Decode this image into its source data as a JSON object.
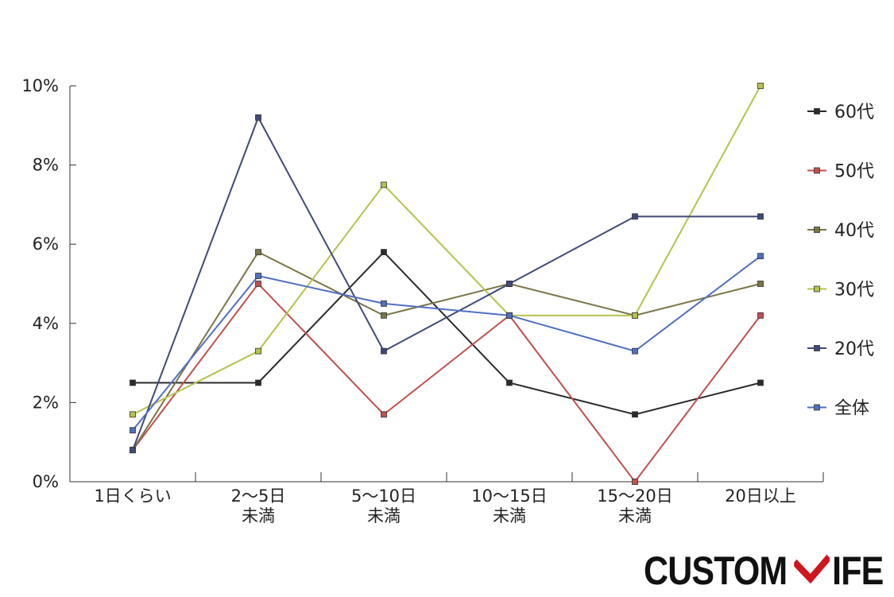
{
  "chart_data": {
    "type": "line",
    "categories": [
      [
        "1日くらい"
      ],
      [
        "2〜5日",
        "未満"
      ],
      [
        "5〜10日",
        "未満"
      ],
      [
        "10〜15日",
        "未満"
      ],
      [
        "15〜20日",
        "未満"
      ],
      [
        "20日以上"
      ]
    ],
    "ylim": [
      0,
      10
    ],
    "yticks": [
      "0%",
      "2%",
      "4%",
      "6%",
      "8%",
      "10%"
    ],
    "legend_position": "right",
    "series": [
      {
        "name": "60代",
        "color": "#2b2b2b",
        "values": [
          2.5,
          2.5,
          5.8,
          2.5,
          1.7,
          2.5
        ]
      },
      {
        "name": "50代",
        "color": "#c0504d",
        "values": [
          0.8,
          5.0,
          1.7,
          4.2,
          0.0,
          4.2
        ]
      },
      {
        "name": "40代",
        "color": "#7a7448",
        "values": [
          0.8,
          5.8,
          4.2,
          5.0,
          4.2,
          5.0
        ]
      },
      {
        "name": "30代",
        "color": "#b6c24d",
        "values": [
          1.7,
          3.3,
          7.5,
          4.2,
          4.2,
          10.0
        ]
      },
      {
        "name": "20代",
        "color": "#3f4a7a",
        "values": [
          0.8,
          9.2,
          3.3,
          5.0,
          6.7,
          6.7
        ]
      },
      {
        "name": "全体",
        "color": "#4f6fc0",
        "values": [
          1.3,
          5.2,
          4.5,
          4.2,
          3.3,
          5.7
        ]
      }
    ]
  },
  "logo": {
    "text_left": "CUSTOM",
    "text_right": "IFE",
    "mark_color": "#d0151e"
  }
}
